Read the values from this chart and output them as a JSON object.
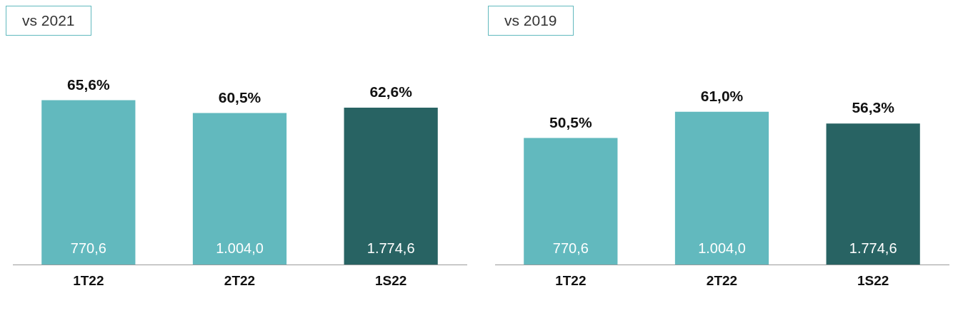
{
  "chart_data": [
    {
      "type": "bar",
      "title": "vs 2021",
      "categories": [
        "1T22",
        "2T22",
        "1S22"
      ],
      "values": [
        65.6,
        60.5,
        62.6
      ],
      "colors": [
        "#62b9be",
        "#62b9be",
        "#286363"
      ],
      "value_labels": [
        "65,6%",
        "60,5%",
        "62,6%"
      ],
      "tick_labels": "x",
      "grid": false,
      "legend": false,
      "annotations": [
        "770,6",
        "1.004,0",
        "1.774,6"
      ]
    },
    {
      "type": "bar",
      "title": "vs 2019",
      "categories": [
        "1T22",
        "2T22",
        "1S22"
      ],
      "values": [
        50.5,
        61.0,
        56.3
      ],
      "colors": [
        "#62b9be",
        "#62b9be",
        "#286363"
      ],
      "value_labels": [
        "50,5%",
        "61,0%",
        "56,3%"
      ],
      "tick_labels": "x",
      "grid": false,
      "legend": false,
      "annotations": [
        "770,6",
        "1.004,0",
        "1.774,6"
      ]
    }
  ]
}
